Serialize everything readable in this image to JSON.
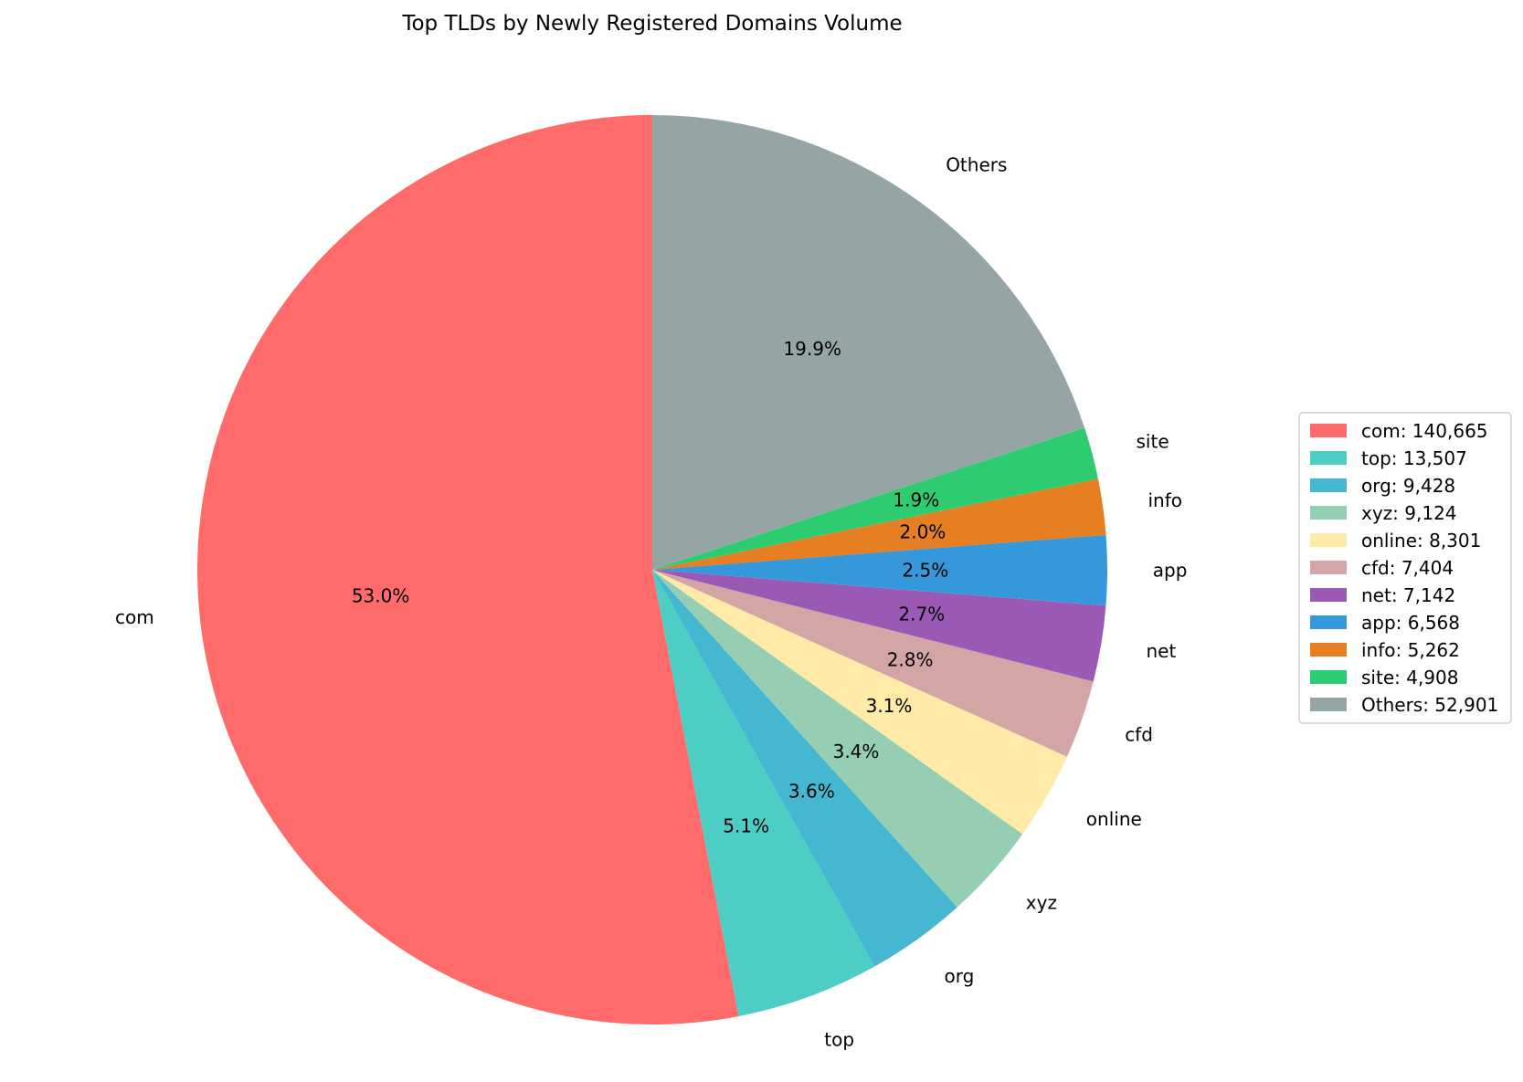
{
  "chart_data": {
    "type": "pie",
    "title": "Top TLDs by Newly Registered Domains Volume",
    "start_angle_deg": 90,
    "direction": "counterclockwise",
    "legend_placement": "right",
    "slices": [
      {
        "label": "com",
        "value": 140665,
        "pct_label": "53.0%",
        "legend": "com: 140,665",
        "color": "#FF6B6B"
      },
      {
        "label": "top",
        "value": 13507,
        "pct_label": "5.1%",
        "legend": "top: 13,507",
        "color": "#4ECDC4"
      },
      {
        "label": "org",
        "value": 9428,
        "pct_label": "3.6%",
        "legend": "org: 9,428",
        "color": "#45B7D1"
      },
      {
        "label": "xyz",
        "value": 9124,
        "pct_label": "3.4%",
        "legend": "xyz: 9,124",
        "color": "#96CEB4"
      },
      {
        "label": "online",
        "value": 8301,
        "pct_label": "3.1%",
        "legend": "online: 8,301",
        "color": "#FFEAA7"
      },
      {
        "label": "cfd",
        "value": 7404,
        "pct_label": "2.8%",
        "legend": "cfd: 7,404",
        "color": "#D4A5A5"
      },
      {
        "label": "net",
        "value": 7142,
        "pct_label": "2.7%",
        "legend": "net: 7,142",
        "color": "#9B59B6"
      },
      {
        "label": "app",
        "value": 6568,
        "pct_label": "2.5%",
        "legend": "app: 6,568",
        "color": "#3498DB"
      },
      {
        "label": "info",
        "value": 5262,
        "pct_label": "2.0%",
        "legend": "info: 5,262",
        "color": "#E67E22"
      },
      {
        "label": "site",
        "value": 4908,
        "pct_label": "1.9%",
        "legend": "site: 4,908",
        "color": "#2ECC71"
      },
      {
        "label": "Others",
        "value": 52901,
        "pct_label": "19.9%",
        "legend": "Others: 52,901",
        "color": "#95A5A6"
      }
    ]
  }
}
